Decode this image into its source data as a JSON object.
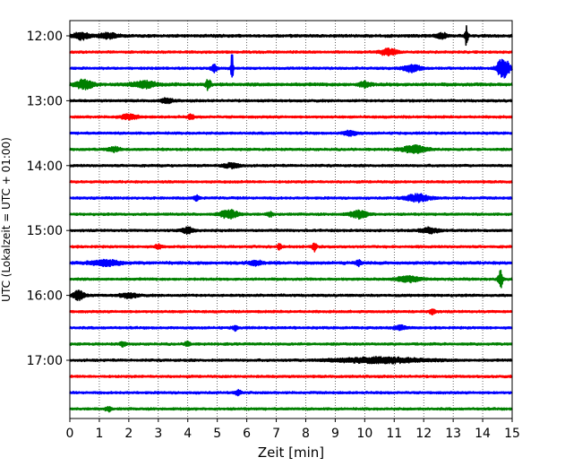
{
  "chart_data": {
    "type": "line",
    "title": "",
    "xlabel": "Zeit  [min]",
    "ylabel": "UTC (Lokalzeit = UTC + 01:00)",
    "xlim": [
      0,
      15
    ],
    "x_ticks": [
      0,
      1,
      2,
      3,
      4,
      5,
      6,
      7,
      8,
      9,
      10,
      11,
      12,
      13,
      14,
      15
    ],
    "y_tick_labels": [
      "12:00",
      "13:00",
      "14:00",
      "15:00",
      "16:00",
      "17:00"
    ],
    "grid": "vertical dotted lines at each minute",
    "legend": "none",
    "trace_interval_minutes": 15,
    "start_time": "12:00",
    "colors": [
      "#000000",
      "#ff0000",
      "#0000ff",
      "#008000"
    ],
    "traces": [
      {
        "time": "12:00",
        "color": "#000000",
        "noise": 1.2,
        "events": [
          {
            "t": 0.4,
            "amp": 4,
            "width": 0.25
          },
          {
            "t": 1.3,
            "amp": 3,
            "width": 0.3
          },
          {
            "t": 13.45,
            "amp": 10,
            "width": 0.05
          },
          {
            "t": 12.6,
            "amp": 3,
            "width": 0.2
          }
        ]
      },
      {
        "time": "12:15",
        "color": "#ff0000",
        "noise": 1.0,
        "events": [
          {
            "t": 10.8,
            "amp": 3.5,
            "width": 0.3
          }
        ]
      },
      {
        "time": "12:30",
        "color": "#0000ff",
        "noise": 1.0,
        "events": [
          {
            "t": 5.5,
            "amp": 18,
            "width": 0.04
          },
          {
            "t": 4.9,
            "amp": 4,
            "width": 0.1
          },
          {
            "t": 11.6,
            "amp": 4,
            "width": 0.3
          },
          {
            "t": 14.7,
            "amp": 12,
            "width": 0.2
          }
        ]
      },
      {
        "time": "12:45",
        "color": "#008000",
        "noise": 1.3,
        "events": [
          {
            "t": 0.5,
            "amp": 5,
            "width": 0.3
          },
          {
            "t": 2.5,
            "amp": 3.5,
            "width": 0.4
          },
          {
            "t": 4.7,
            "amp": 6,
            "width": 0.08
          },
          {
            "t": 10.0,
            "amp": 3,
            "width": 0.2
          }
        ]
      },
      {
        "time": "13:00",
        "color": "#000000",
        "noise": 1.0,
        "events": [
          {
            "t": 3.3,
            "amp": 2.5,
            "width": 0.2
          }
        ]
      },
      {
        "time": "13:15",
        "color": "#ff0000",
        "noise": 1.0,
        "events": [
          {
            "t": 2.0,
            "amp": 2.5,
            "width": 0.3
          },
          {
            "t": 4.1,
            "amp": 2.5,
            "width": 0.1
          }
        ]
      },
      {
        "time": "13:30",
        "color": "#0000ff",
        "noise": 1.0,
        "events": [
          {
            "t": 9.5,
            "amp": 3,
            "width": 0.2
          }
        ]
      },
      {
        "time": "13:45",
        "color": "#008000",
        "noise": 1.0,
        "events": [
          {
            "t": 11.7,
            "amp": 4,
            "width": 0.4
          },
          {
            "t": 1.5,
            "amp": 2.5,
            "width": 0.2
          }
        ]
      },
      {
        "time": "14:00",
        "color": "#000000",
        "noise": 1.0,
        "events": [
          {
            "t": 5.5,
            "amp": 2.5,
            "width": 0.3
          }
        ]
      },
      {
        "time": "14:15",
        "color": "#ff0000",
        "noise": 1.0,
        "events": []
      },
      {
        "time": "14:30",
        "color": "#0000ff",
        "noise": 1.0,
        "events": [
          {
            "t": 11.8,
            "amp": 4,
            "width": 0.4
          },
          {
            "t": 4.3,
            "amp": 2.5,
            "width": 0.1
          }
        ]
      },
      {
        "time": "14:45",
        "color": "#008000",
        "noise": 1.0,
        "events": [
          {
            "t": 5.4,
            "amp": 5,
            "width": 0.3
          },
          {
            "t": 9.8,
            "amp": 4,
            "width": 0.3
          },
          {
            "t": 6.8,
            "amp": 2.5,
            "width": 0.1
          }
        ]
      },
      {
        "time": "15:00",
        "color": "#000000",
        "noise": 1.0,
        "events": [
          {
            "t": 4.0,
            "amp": 3.5,
            "width": 0.2
          },
          {
            "t": 12.2,
            "amp": 3,
            "width": 0.3
          }
        ]
      },
      {
        "time": "15:15",
        "color": "#ff0000",
        "noise": 1.0,
        "events": [
          {
            "t": 7.1,
            "amp": 4,
            "width": 0.06
          },
          {
            "t": 8.3,
            "amp": 5,
            "width": 0.06
          },
          {
            "t": 3.0,
            "amp": 2.5,
            "width": 0.1
          }
        ]
      },
      {
        "time": "15:30",
        "color": "#0000ff",
        "noise": 1.2,
        "events": [
          {
            "t": 1.2,
            "amp": 3,
            "width": 0.5
          },
          {
            "t": 6.3,
            "amp": 2.5,
            "width": 0.2
          },
          {
            "t": 9.8,
            "amp": 3,
            "width": 0.1
          }
        ]
      },
      {
        "time": "15:45",
        "color": "#008000",
        "noise": 1.0,
        "events": [
          {
            "t": 14.6,
            "amp": 10,
            "width": 0.08
          },
          {
            "t": 11.5,
            "amp": 3,
            "width": 0.4
          }
        ]
      },
      {
        "time": "16:00",
        "color": "#000000",
        "noise": 1.0,
        "events": [
          {
            "t": 0.3,
            "amp": 5,
            "width": 0.2
          },
          {
            "t": 2.0,
            "amp": 2.5,
            "width": 0.3
          }
        ]
      },
      {
        "time": "16:15",
        "color": "#ff0000",
        "noise": 1.0,
        "events": [
          {
            "t": 12.3,
            "amp": 3,
            "width": 0.1
          }
        ]
      },
      {
        "time": "16:30",
        "color": "#0000ff",
        "noise": 1.0,
        "events": [
          {
            "t": 5.6,
            "amp": 2.5,
            "width": 0.1
          },
          {
            "t": 11.2,
            "amp": 2.5,
            "width": 0.2
          }
        ]
      },
      {
        "time": "16:45",
        "color": "#008000",
        "noise": 1.0,
        "events": [
          {
            "t": 4.0,
            "amp": 3.5,
            "width": 0.08
          },
          {
            "t": 1.8,
            "amp": 2.5,
            "width": 0.1
          }
        ]
      },
      {
        "time": "17:00",
        "color": "#000000",
        "noise": 1.0,
        "events": [
          {
            "t": 10.5,
            "amp": 3,
            "width": 1.5
          }
        ]
      },
      {
        "time": "17:15",
        "color": "#ff0000",
        "noise": 1.0,
        "events": []
      },
      {
        "time": "17:30",
        "color": "#0000ff",
        "noise": 1.0,
        "events": [
          {
            "t": 5.7,
            "amp": 2.5,
            "width": 0.1
          }
        ]
      },
      {
        "time": "17:45",
        "color": "#008000",
        "noise": 1.0,
        "events": [
          {
            "t": 1.3,
            "amp": 2.5,
            "width": 0.1
          }
        ]
      }
    ]
  }
}
